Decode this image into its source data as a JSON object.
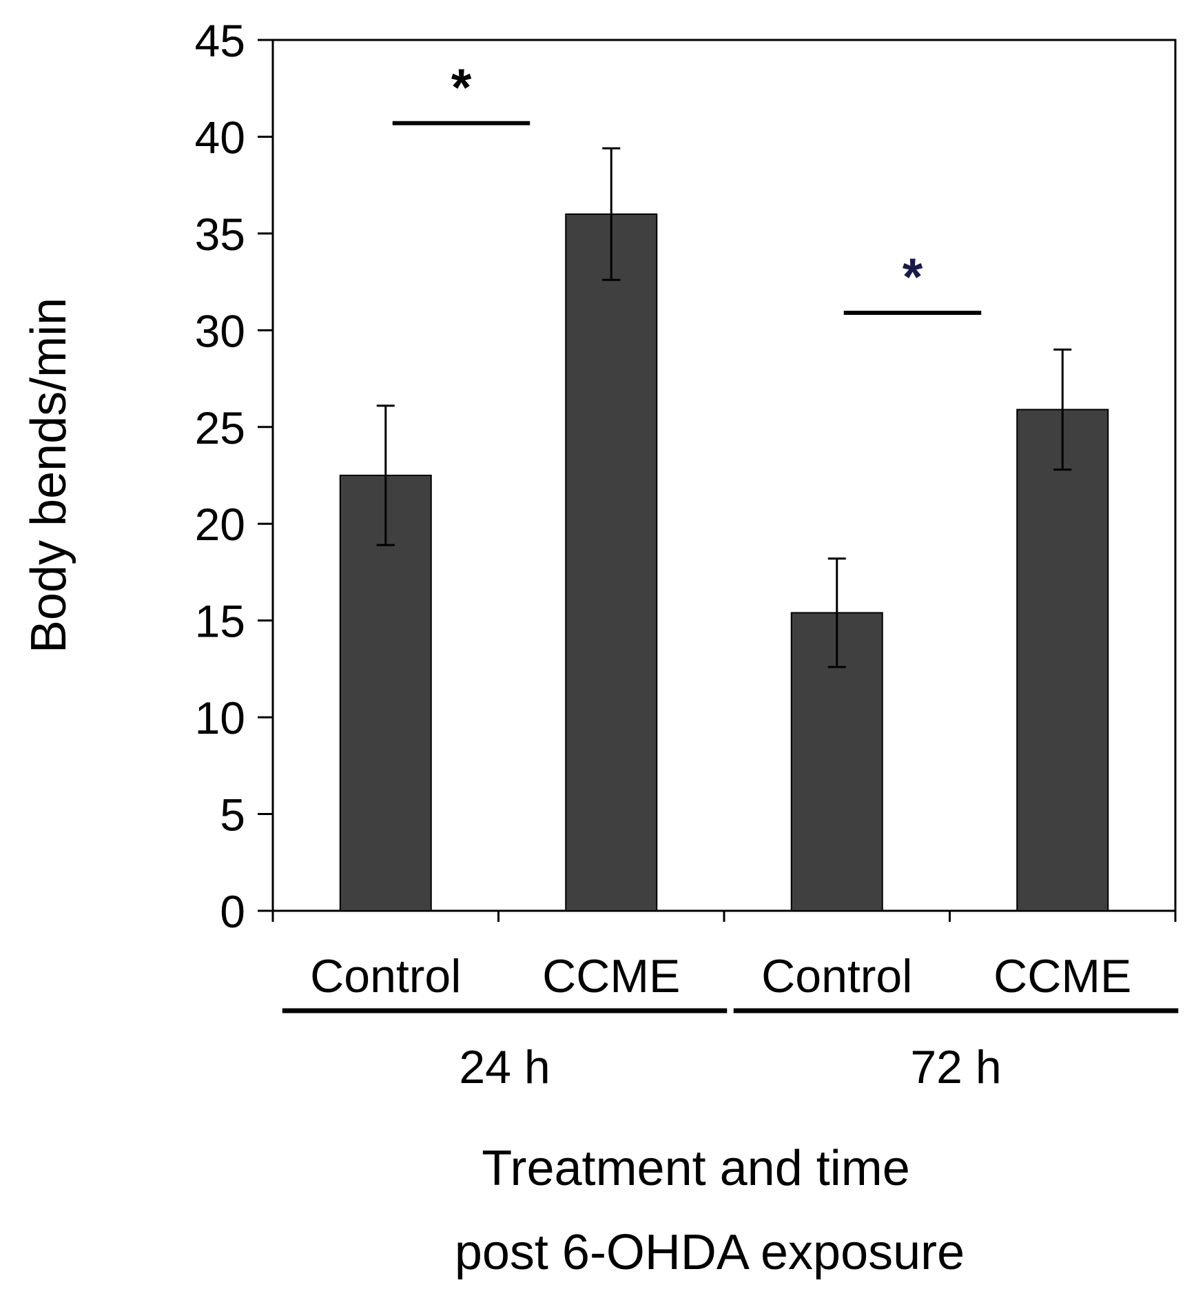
{
  "chart_data": {
    "type": "bar",
    "title": "",
    "ylabel": "Body bends/min",
    "xlabel_lines": [
      "Treatment and time",
      "post 6-OHDA exposure"
    ],
    "ylim": [
      0,
      45
    ],
    "yticks": [
      0,
      5,
      10,
      15,
      20,
      25,
      30,
      35,
      40,
      45
    ],
    "yticklabels": [
      "0",
      "5",
      "10",
      "15",
      "20",
      "25",
      "30",
      "35",
      "40",
      "45"
    ],
    "groups": [
      {
        "label": "24 h",
        "categories": [
          "Control",
          "CCME"
        ]
      },
      {
        "label": "72 h",
        "categories": [
          "Control",
          "CCME"
        ]
      }
    ],
    "categories": [
      "Control",
      "CCME",
      "Control",
      "CCME"
    ],
    "values": [
      22.5,
      36.0,
      15.4,
      25.9
    ],
    "errors": [
      3.6,
      3.4,
      2.8,
      3.1
    ],
    "bar_color": "#404040",
    "significance": [
      {
        "bars": [
          0,
          1
        ],
        "y": 40.7,
        "label": "*",
        "color": "#000000"
      },
      {
        "bars": [
          2,
          3
        ],
        "y": 30.9,
        "label": "*",
        "color": "#1a1a4a"
      }
    ]
  }
}
